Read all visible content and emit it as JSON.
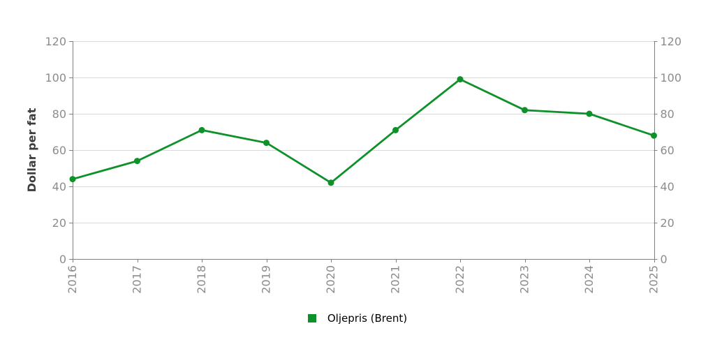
{
  "chart_data": {
    "type": "line",
    "title": "",
    "categories": [
      "2016",
      "2017",
      "2018",
      "2019",
      "2020",
      "2021",
      "2022",
      "2023",
      "2024",
      "2025"
    ],
    "series": [
      {
        "name": "Oljepris (Brent)",
        "color": "#0e9129",
        "marker": "circle",
        "values": [
          44,
          54,
          71,
          64,
          42,
          71,
          99,
          82,
          80,
          68
        ]
      }
    ],
    "xlabel": "",
    "ylabel": "Dollar per fat",
    "ylim": [
      0,
      120
    ],
    "yticks": [
      0,
      20,
      40,
      60,
      80,
      100,
      120
    ],
    "grid": "horizontal-only",
    "x_tick_rotation": -90,
    "legend_position": "bottom-center",
    "secondary_y_axis": "mirrors left axis"
  },
  "legend": {
    "items": [
      {
        "label": "Oljepris (Brent)",
        "marker": "square",
        "color": "#0e9129"
      }
    ]
  },
  "colors": {
    "series_green": "#0e9129",
    "gridline": "#d9d9d9",
    "axis_line": "#7f7f7f",
    "tick_mark": "#7f7f7f",
    "tick_label": "#8c8c8c",
    "axis_title": "#3d3d3d",
    "legend_text": "#000000",
    "background": "#ffffff"
  }
}
